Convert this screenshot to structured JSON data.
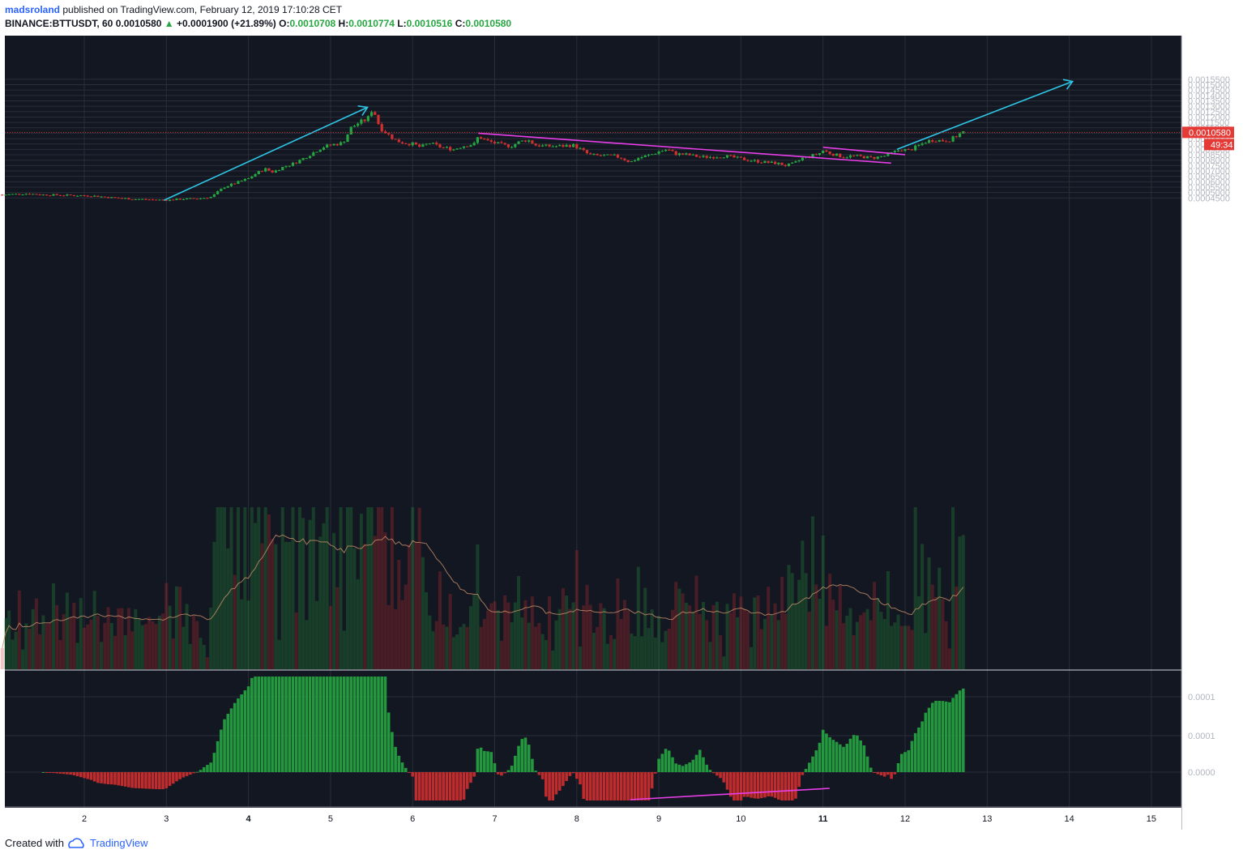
{
  "header": {
    "author": "madsroland",
    "published_text": "published on TradingView.com, February 12, 2019 17:10:28 CET",
    "symbol": "BINANCE:BTTUSDT, 60",
    "last": "0.0010580",
    "change": "+0.0001900 (+21.89%)",
    "o_label": "O:",
    "o_value": "0.0010708",
    "h_label": "H:",
    "h_value": "0.0010774",
    "l_label": "L:",
    "l_value": "0.0010516",
    "c_label": "C:",
    "c_value": "0.0010580"
  },
  "footer": {
    "created_with": "Created with",
    "brand": "TradingView"
  },
  "badges": {
    "price": "0.0010580",
    "timer": "49:34"
  },
  "colors": {
    "background": "#131722",
    "grid": "#2a2e39",
    "up": "#26a641",
    "down": "#d32f2f",
    "trend_cyan": "#2ec5e6",
    "trend_magenta": "#e83ee8",
    "volume_ma": "#c8906a"
  },
  "chart_data": [
    {
      "type": "candlestick",
      "symbol": "BINANCE:BTTUSDT",
      "interval": "60",
      "x_ticks": [
        "2",
        "3",
        "4",
        "5",
        "6",
        "7",
        "8",
        "9",
        "10",
        "11",
        "12",
        "13",
        "14",
        "15"
      ],
      "y_ticks": [
        "0.0004500",
        "0.0005000",
        "0.0005500",
        "0.0006000",
        "0.0006500",
        "0.0007000",
        "0.0007500",
        "0.0008000",
        "0.0008500",
        "0.0009000",
        "0.0009500",
        "0.0010000",
        "0.0010500",
        "0.0011000",
        "0.0011500",
        "0.0012000",
        "0.0012500",
        "0.0013000",
        "0.0013500",
        "0.0014000",
        "0.0014500",
        "0.0015000",
        "0.0015500"
      ],
      "ylim": [
        0.000413,
        0.00158
      ],
      "xlim": [
        1.0,
        15.35
      ],
      "close_path": [
        [
          1.0,
          0.00048
        ],
        [
          1.3,
          0.00049
        ],
        [
          1.5,
          0.00048
        ],
        [
          1.8,
          0.000475
        ],
        [
          2.1,
          0.00047
        ],
        [
          2.3,
          0.000455
        ],
        [
          2.6,
          0.00044
        ],
        [
          2.8,
          0.000435
        ],
        [
          3.0,
          0.00043
        ],
        [
          3.2,
          0.00044
        ],
        [
          3.4,
          0.000445
        ],
        [
          3.55,
          0.00046
        ],
        [
          3.7,
          0.00055
        ],
        [
          3.85,
          0.00059
        ],
        [
          4.0,
          0.00063
        ],
        [
          4.1,
          0.00068
        ],
        [
          4.2,
          0.00072
        ],
        [
          4.3,
          0.00069
        ],
        [
          4.4,
          0.00073
        ],
        [
          4.55,
          0.00077
        ],
        [
          4.7,
          0.00083
        ],
        [
          4.9,
          0.00092
        ],
        [
          5.0,
          0.00094
        ],
        [
          5.15,
          0.00096
        ],
        [
          5.25,
          0.0011
        ],
        [
          5.35,
          0.00115
        ],
        [
          5.45,
          0.00118
        ],
        [
          5.5,
          0.00126
        ],
        [
          5.55,
          0.00122
        ],
        [
          5.6,
          0.0011
        ],
        [
          5.7,
          0.00104
        ],
        [
          5.8,
          0.00098
        ],
        [
          5.9,
          0.00096
        ],
        [
          6.0,
          0.00095
        ],
        [
          6.1,
          0.00092
        ],
        [
          6.2,
          0.00096
        ],
        [
          6.35,
          0.00092
        ],
        [
          6.5,
          0.0009
        ],
        [
          6.6,
          0.00093
        ],
        [
          6.75,
          0.00095
        ],
        [
          6.8,
          0.00102
        ],
        [
          6.9,
          0.00098
        ],
        [
          7.0,
          0.00096
        ],
        [
          7.1,
          0.00094
        ],
        [
          7.2,
          0.00093
        ],
        [
          7.3,
          0.00097
        ],
        [
          7.4,
          0.00099
        ],
        [
          7.5,
          0.00094
        ],
        [
          7.6,
          0.00093
        ],
        [
          7.8,
          0.00093
        ],
        [
          7.95,
          0.00094
        ],
        [
          8.05,
          0.0009
        ],
        [
          8.15,
          0.00085
        ],
        [
          8.3,
          0.00084
        ],
        [
          8.45,
          0.00084
        ],
        [
          8.55,
          0.00082
        ],
        [
          8.65,
          0.00078
        ],
        [
          8.75,
          0.00082
        ],
        [
          8.9,
          0.00085
        ],
        [
          9.0,
          0.00088
        ],
        [
          9.1,
          0.0009
        ],
        [
          9.2,
          0.00086
        ],
        [
          9.35,
          0.00085
        ],
        [
          9.5,
          0.00083
        ],
        [
          9.65,
          0.00083
        ],
        [
          9.8,
          0.00084
        ],
        [
          9.95,
          0.00082
        ],
        [
          10.1,
          0.0008
        ],
        [
          10.3,
          0.00078
        ],
        [
          10.45,
          0.00077
        ],
        [
          10.55,
          0.00075
        ],
        [
          10.65,
          0.00077
        ],
        [
          10.75,
          0.00082
        ],
        [
          10.85,
          0.00084
        ],
        [
          10.95,
          0.00086
        ],
        [
          11.0,
          0.00089
        ],
        [
          11.1,
          0.00086
        ],
        [
          11.25,
          0.00083
        ],
        [
          11.35,
          0.00084
        ],
        [
          11.5,
          0.00083
        ],
        [
          11.6,
          0.00082
        ],
        [
          11.75,
          0.00084
        ],
        [
          11.85,
          0.00087
        ],
        [
          11.95,
          0.0009
        ],
        [
          12.05,
          0.00089
        ],
        [
          12.15,
          0.00093
        ],
        [
          12.25,
          0.00097
        ],
        [
          12.35,
          0.00099
        ],
        [
          12.45,
          0.00098
        ],
        [
          12.55,
          0.00099
        ],
        [
          12.62,
          0.00102
        ],
        [
          12.7,
          0.00106
        ]
      ],
      "volume_ma": "shown",
      "current_price": 0.001058
    },
    {
      "type": "bar",
      "role": "oscillator",
      "y_ticks": [
        "0.0000",
        "0.0001",
        "0.0001"
      ]
    }
  ]
}
